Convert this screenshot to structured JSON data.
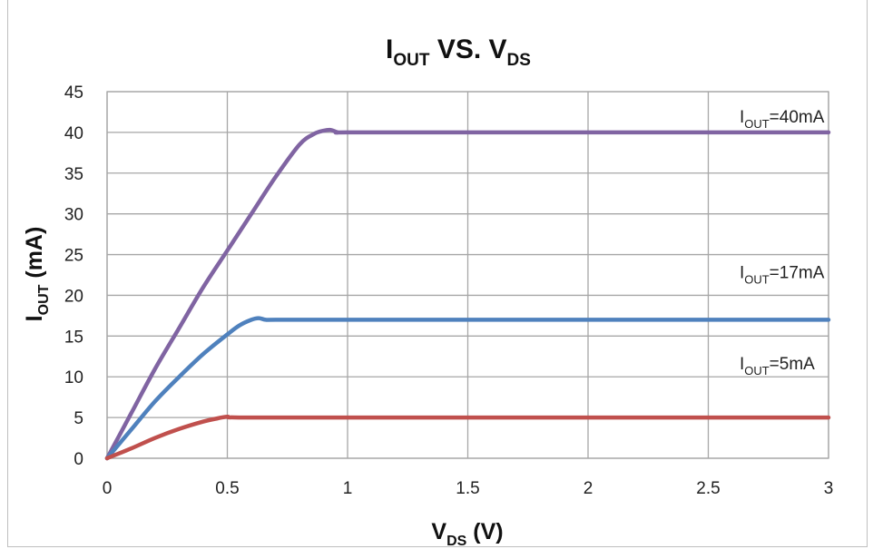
{
  "chart_data": {
    "type": "line",
    "title": {
      "main": "I",
      "sub": "OUT",
      "mid": " VS. V",
      "sub2": "DS"
    },
    "xlabel": {
      "main": "V",
      "sub": "DS",
      "rest": " (V)"
    },
    "ylabel": {
      "main": "I",
      "sub": "OUT",
      "rest": " (mA)"
    },
    "xlim": [
      0,
      3
    ],
    "ylim": [
      0,
      45
    ],
    "x_ticks": [
      "0",
      "0.5",
      "1",
      "1.5",
      "2",
      "2.5",
      "3"
    ],
    "y_ticks": [
      "0",
      "5",
      "10",
      "15",
      "20",
      "25",
      "30",
      "35",
      "40",
      "45"
    ],
    "grid": true,
    "series": [
      {
        "color": "#8064a2",
        "x": [
          0,
          0.1,
          0.2,
          0.3,
          0.4,
          0.5,
          0.6,
          0.7,
          0.8,
          0.86,
          0.9,
          0.93,
          0.96,
          1.0,
          1.5,
          2.0,
          2.5,
          3.0
        ],
        "y": [
          0,
          5.5,
          11,
          16,
          21,
          25.5,
          30,
          34.5,
          38.5,
          39.8,
          40.2,
          40.3,
          40.0,
          40,
          40,
          40,
          40,
          40
        ]
      },
      {
        "color": "#4f81bd",
        "x": [
          0,
          0.1,
          0.2,
          0.3,
          0.4,
          0.5,
          0.55,
          0.6,
          0.63,
          0.66,
          0.7,
          1.0,
          1.5,
          2.0,
          2.5,
          3.0
        ],
        "y": [
          0,
          3.5,
          7,
          10,
          12.8,
          15.2,
          16.3,
          17.0,
          17.2,
          17.0,
          17,
          17,
          17,
          17,
          17,
          17
        ]
      },
      {
        "color": "#c0504d",
        "x": [
          0,
          0.1,
          0.2,
          0.3,
          0.4,
          0.46,
          0.5,
          0.55,
          1.0,
          1.5,
          2.0,
          2.5,
          3.0
        ],
        "y": [
          0,
          1.2,
          2.5,
          3.6,
          4.5,
          4.9,
          5.1,
          5.0,
          5,
          5,
          5,
          5,
          5
        ]
      }
    ],
    "annotations": [
      {
        "main": "I",
        "sub": "OUT",
        "rest": "=40mA",
        "x": 2.63,
        "y": 41.2
      },
      {
        "main": "I",
        "sub": "OUT",
        "rest": "=17mA",
        "x": 2.63,
        "y": 22.1
      },
      {
        "main": "I",
        "sub": "OUT",
        "rest": "=5mA",
        "x": 2.63,
        "y": 10.9
      }
    ]
  }
}
